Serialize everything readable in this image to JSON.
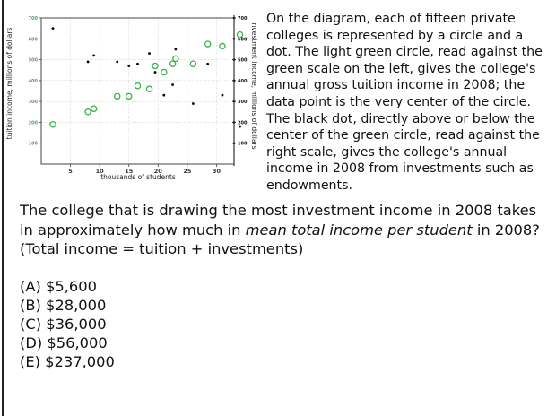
{
  "description": "On the diagram, each of fifteen private colleges is represented by a circle and a dot. The light green circle, read against the green scale on the left, gives the college's annual gross tuition income in 2008; the data point is the very center of the circle. The black dot, directly above or below the center of the green circle, read against the right scale, gives the college's annual income in 2008 from investments such as endowments.",
  "question": {
    "part1": "The college that is drawing the most investment income in 2008 takes in approximately how much in ",
    "emphasis": "mean total income per student",
    "part2": " in 2008? (Total income = tuition + investments)"
  },
  "options": [
    "(A) $5,600",
    "(B) $28,000",
    "(C) $36,000",
    "(D) $56,000",
    "(E) $237,000"
  ],
  "colors": {
    "tuition": "#3cb34a",
    "investment": "#000000",
    "page_border": "#222222"
  },
  "chart_data": {
    "type": "scatter",
    "xlabel": "thousands of students",
    "ylabel_left": "tuition income, millions of dollars",
    "ylabel_right": "investment income, millions of dollars",
    "x_ticks": [
      "5",
      "10",
      "15",
      "20",
      "25",
      "30"
    ],
    "y_left_ticks": [
      "100",
      "200",
      "300",
      "400",
      "500",
      "600",
      "700"
    ],
    "y_right_ticks": [
      "100",
      "200",
      "300",
      "400",
      "500",
      "600",
      "700"
    ],
    "xlim": [
      0,
      33
    ],
    "ylim_left": [
      0,
      700
    ],
    "ylim_right": [
      0,
      700
    ],
    "grid": true,
    "series": [
      {
        "marker": "open green circle",
        "axis": "left",
        "points": [
          {
            "x": 2.0,
            "y": 190
          },
          {
            "x": 8.0,
            "y": 250
          },
          {
            "x": 9.0,
            "y": 265
          },
          {
            "x": 13.0,
            "y": 325
          },
          {
            "x": 15.0,
            "y": 325
          },
          {
            "x": 16.5,
            "y": 375
          },
          {
            "x": 18.5,
            "y": 360
          },
          {
            "x": 19.5,
            "y": 470
          },
          {
            "x": 21.0,
            "y": 440
          },
          {
            "x": 22.5,
            "y": 480
          },
          {
            "x": 23.0,
            "y": 505
          },
          {
            "x": 26.0,
            "y": 480
          },
          {
            "x": 28.5,
            "y": 575
          },
          {
            "x": 31.0,
            "y": 565
          },
          {
            "x": 34.0,
            "y": 620
          }
        ]
      },
      {
        "marker": "black dot",
        "axis": "right",
        "points": [
          {
            "x": 2.0,
            "y": 650
          },
          {
            "x": 8.0,
            "y": 490
          },
          {
            "x": 9.0,
            "y": 520
          },
          {
            "x": 13.0,
            "y": 490
          },
          {
            "x": 15.0,
            "y": 470
          },
          {
            "x": 16.5,
            "y": 480
          },
          {
            "x": 18.5,
            "y": 530
          },
          {
            "x": 19.5,
            "y": 440
          },
          {
            "x": 21.0,
            "y": 330
          },
          {
            "x": 22.5,
            "y": 380
          },
          {
            "x": 23.0,
            "y": 550
          },
          {
            "x": 26.0,
            "y": 290
          },
          {
            "x": 28.5,
            "y": 480
          },
          {
            "x": 31.0,
            "y": 330
          },
          {
            "x": 34.0,
            "y": 180
          }
        ]
      }
    ]
  }
}
